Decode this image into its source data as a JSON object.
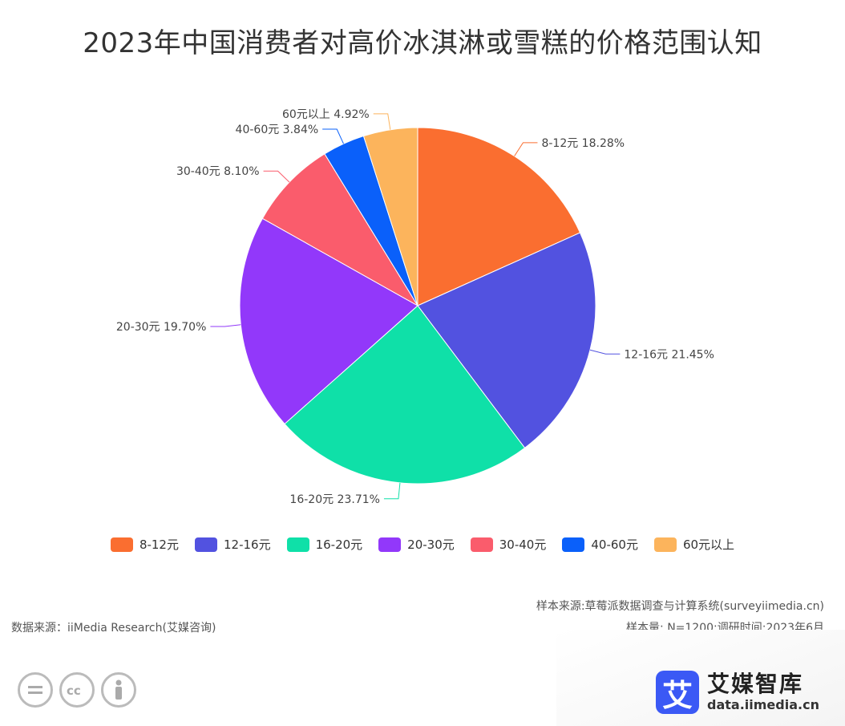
{
  "chart_data": {
    "type": "pie",
    "title": "2023年中国消费者对高价冰淇淋或雪糕的价格范围认知",
    "categories": [
      "8-12元",
      "12-16元",
      "16-20元",
      "20-30元",
      "30-40元",
      "40-60元",
      "60元以上"
    ],
    "values": [
      18.28,
      21.45,
      23.71,
      19.7,
      8.1,
      3.84,
      4.92
    ],
    "labels": [
      "8-12元 18.28%",
      "12-16元 21.45%",
      "16-20元 23.71%",
      "20-30元 19.70%",
      "30-40元 8.10%",
      "40-60元 3.84%",
      "60元以上 4.92%"
    ],
    "colors": [
      "#fa6e30",
      "#5252e0",
      "#0fe0a8",
      "#9238fa",
      "#fa5c6c",
      "#0a60fa",
      "#fcb45c"
    ],
    "legend_position": "bottom",
    "start": "12 o'clock, clockwise"
  },
  "footer": {
    "source_left": "数据来源：iiMedia Research(艾媒咨询)",
    "source_right_1": "样本来源:草莓派数据调查与计算系统(surveyiimedia.cn)",
    "source_right_2": "样本量: N=1200;调研时间:2023年6月"
  },
  "brand": {
    "logo_char": "艾",
    "name": "艾媒智库",
    "url": "data.iimedia.cn"
  },
  "icons": [
    "cc-equal-icon",
    "cc-icon",
    "cc-by-icon"
  ]
}
